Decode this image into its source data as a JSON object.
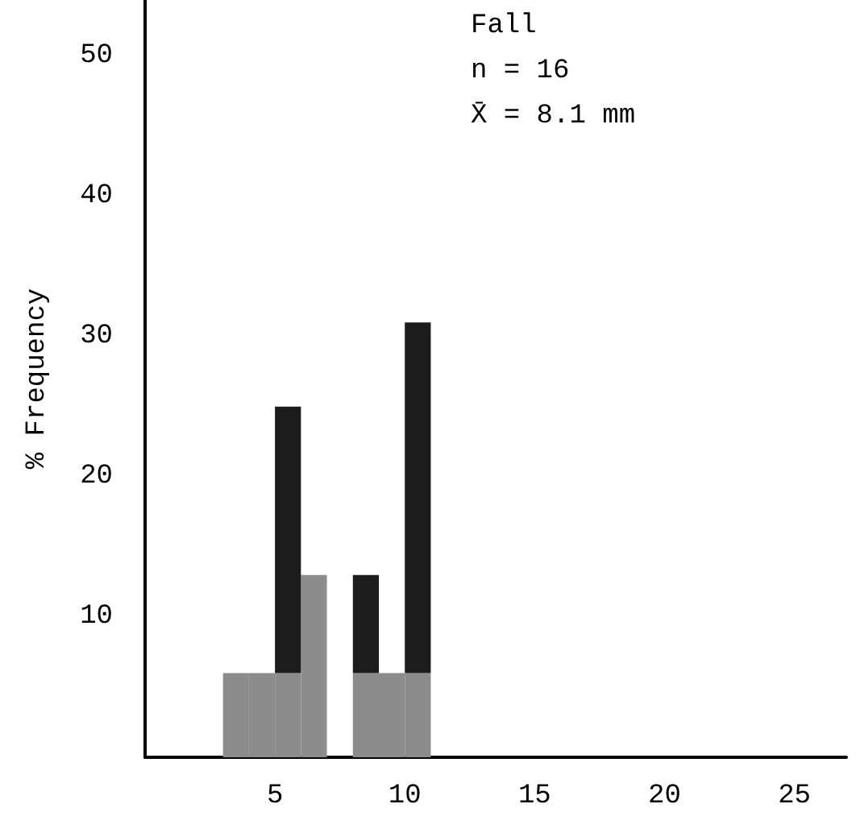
{
  "chart_data": {
    "type": "bar",
    "ylabel": "% Frequency",
    "annotations": [
      "Fall",
      "n = 16",
      "X̄ = 8.1 mm"
    ],
    "x": [
      3.5,
      4.5,
      5.5,
      6.5,
      7.5,
      8.5,
      9.5,
      10.5
    ],
    "stacked": true,
    "series": [
      {
        "color": "#8c8c8c",
        "values": [
          6,
          6,
          6,
          13,
          0,
          6,
          6,
          6
        ]
      },
      {
        "color": "#1c1c1c",
        "values": [
          0,
          0,
          19,
          0,
          0,
          7,
          0,
          25
        ]
      }
    ],
    "xlim": [
      0,
      27
    ],
    "xticks": [
      5,
      10,
      15,
      20,
      25
    ],
    "ylim": [
      0,
      54
    ],
    "yticks": [
      10,
      20,
      30,
      40,
      50
    ],
    "grid": false
  }
}
